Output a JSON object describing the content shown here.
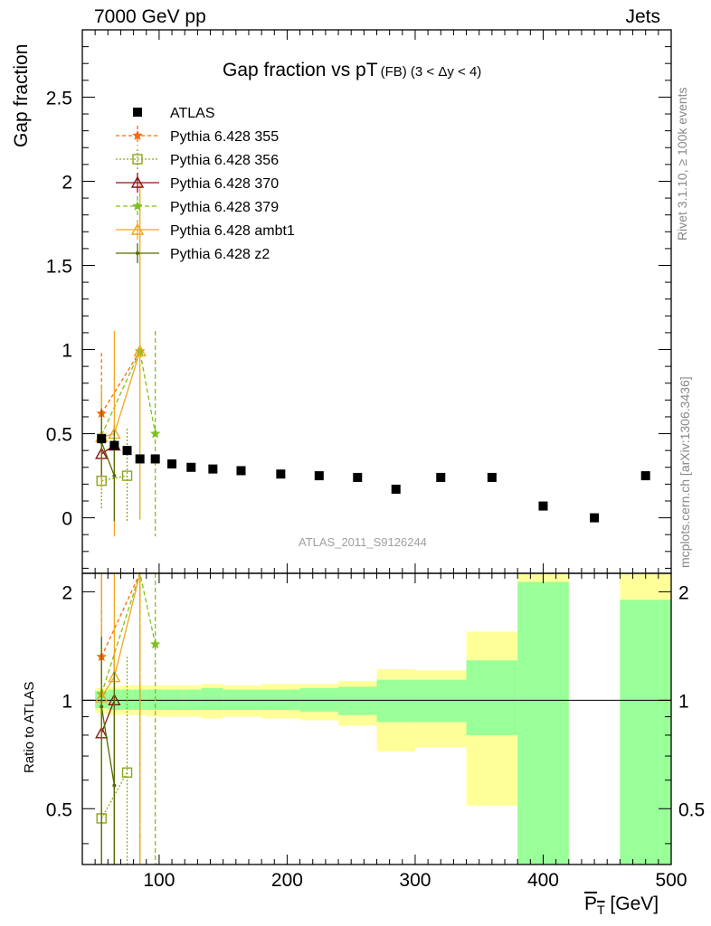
{
  "header": {
    "left_label": "7000 GeV pp",
    "right_label": "Jets"
  },
  "side_labels": {
    "rivet": "Rivet 3.1.10, ≥ 100k events",
    "mcplots": "mcplots.cern.ch [arXiv:1306.3436]"
  },
  "chart_data": [
    {
      "type": "scatter",
      "title": "Gap fraction vs pT",
      "title_suffix": "(FB) (3 < Δy < 4)",
      "ylabel": "Gap fraction",
      "ylim": [
        -0.33,
        2.9
      ],
      "yticks": [
        "0",
        "0.5",
        "1",
        "1.5",
        "2",
        "2.5"
      ],
      "watermark": "ATLAS_2011_S9126244",
      "legend_position": "top-left",
      "data_series": [
        {
          "name": "ATLAS",
          "color": "#000000",
          "marker": "square",
          "x": [
            55,
            65,
            75,
            85,
            97,
            110,
            125,
            142,
            164,
            195,
            225,
            255,
            285,
            320,
            360,
            400,
            440,
            480
          ],
          "y": [
            0.47,
            0.43,
            0.4,
            0.35,
            0.35,
            0.32,
            0.3,
            0.29,
            0.28,
            0.26,
            0.25,
            0.24,
            0.17,
            0.24,
            0.24,
            0.07,
            0.0,
            0.25
          ]
        }
      ],
      "mc_series": [
        {
          "name": "Pythia 6.428 355",
          "color": "#ff6a00",
          "dash": "4,3",
          "marker": "star",
          "x": [
            55,
            85
          ],
          "y": [
            0.62,
            0.99
          ],
          "err": [
            0.36,
            0
          ]
        },
        {
          "name": "Pythia 6.428 356",
          "color": "#8aa61a",
          "dash": "2,2",
          "marker": "open-square",
          "x": [
            55,
            75
          ],
          "y": [
            0.22,
            0.25
          ],
          "err": [
            0.17,
            0.28
          ]
        },
        {
          "name": "Pythia 6.428 370",
          "color": "#8b1414",
          "dash": "",
          "marker": "open-triangle",
          "x": [
            55,
            65
          ],
          "y": [
            0.38,
            0.43
          ],
          "err": [
            0.18,
            0.12
          ]
        },
        {
          "name": "Pythia 6.428 379",
          "color": "#80c020",
          "dash": "5,3",
          "marker": "star",
          "x": [
            55,
            85,
            97
          ],
          "y": [
            0.49,
            0.99,
            0.5
          ],
          "err": [
            0.3,
            0,
            0.61
          ]
        },
        {
          "name": "Pythia 6.428 ambt1",
          "color": "#f2a71a",
          "dash": "",
          "marker": "open-triangle",
          "x": [
            55,
            65,
            85
          ],
          "y": [
            0.48,
            0.5,
            0.99
          ],
          "err": [
            0.3,
            0.61,
            1.0
          ]
        },
        {
          "name": "Pythia 6.428 z2",
          "color": "#556b00",
          "dash": "",
          "marker": "dot",
          "x": [
            55,
            65
          ],
          "y": [
            0.45,
            0.25
          ],
          "err": [
            0.2,
            0.27
          ]
        }
      ]
    },
    {
      "type": "area",
      "ylabel": "Ratio to ATLAS",
      "xlabel": "P_T [GeV]",
      "xlim": [
        40,
        500
      ],
      "ylim": [
        0.35,
        2.25
      ],
      "xticks": [
        "100",
        "200",
        "300",
        "400",
        "500"
      ],
      "yticks": [
        "0.5",
        "1",
        "2"
      ],
      "reference_line": 1,
      "bands": [
        {
          "x0": 50,
          "x1": 60,
          "g": [
            0.95,
            1.06
          ],
          "y": [
            0.92,
            1.08
          ]
        },
        {
          "x0": 60,
          "x1": 70,
          "g": [
            0.94,
            1.07
          ],
          "y": [
            0.91,
            1.09
          ]
        },
        {
          "x0": 70,
          "x1": 80,
          "g": [
            0.94,
            1.07
          ],
          "y": [
            0.91,
            1.1
          ]
        },
        {
          "x0": 80,
          "x1": 90,
          "g": [
            0.94,
            1.07
          ],
          "y": [
            0.91,
            1.1
          ]
        },
        {
          "x0": 90,
          "x1": 103,
          "g": [
            0.94,
            1.07
          ],
          "y": [
            0.9,
            1.1
          ]
        },
        {
          "x0": 103,
          "x1": 118,
          "g": [
            0.94,
            1.07
          ],
          "y": [
            0.9,
            1.1
          ]
        },
        {
          "x0": 118,
          "x1": 133,
          "g": [
            0.94,
            1.07
          ],
          "y": [
            0.9,
            1.1
          ]
        },
        {
          "x0": 133,
          "x1": 150,
          "g": [
            0.94,
            1.08
          ],
          "y": [
            0.89,
            1.11
          ]
        },
        {
          "x0": 150,
          "x1": 180,
          "g": [
            0.94,
            1.07
          ],
          "y": [
            0.9,
            1.1
          ]
        },
        {
          "x0": 180,
          "x1": 210,
          "g": [
            0.94,
            1.07
          ],
          "y": [
            0.89,
            1.11
          ]
        },
        {
          "x0": 210,
          "x1": 240,
          "g": [
            0.93,
            1.08
          ],
          "y": [
            0.88,
            1.11
          ]
        },
        {
          "x0": 240,
          "x1": 270,
          "g": [
            0.91,
            1.09
          ],
          "y": [
            0.85,
            1.13
          ]
        },
        {
          "x0": 270,
          "x1": 300,
          "g": [
            0.87,
            1.14
          ],
          "y": [
            0.72,
            1.22
          ]
        },
        {
          "x0": 300,
          "x1": 340,
          "g": [
            0.87,
            1.14
          ],
          "y": [
            0.74,
            1.21
          ]
        },
        {
          "x0": 340,
          "x1": 380,
          "g": [
            0.8,
            1.29
          ],
          "y": [
            0.51,
            1.55
          ]
        },
        {
          "x0": 380,
          "x1": 420,
          "g": [
            0.35,
            2.13
          ],
          "y": [
            0.35,
            2.25
          ]
        },
        {
          "x0": 460,
          "x1": 500,
          "g": [
            0.35,
            1.9
          ],
          "y": [
            0.35,
            2.25
          ]
        }
      ],
      "mc_series": [
        {
          "name": "Pythia 6.428 355",
          "x": [
            55,
            85
          ],
          "y": [
            1.32,
            2.83
          ],
          "lo": [
            0.35,
            0.35
          ],
          "hi": [
            2.25,
            2.25
          ]
        },
        {
          "name": "Pythia 6.428 356",
          "x": [
            55,
            75
          ],
          "y": [
            0.47,
            0.63
          ],
          "lo": [
            0.35,
            0.35
          ],
          "hi": [
            2.25,
            1.32
          ]
        },
        {
          "name": "Pythia 6.428 370",
          "x": [
            55,
            65
          ],
          "y": [
            0.81,
            1.0
          ],
          "lo": [
            0.35,
            0.35
          ],
          "hi": [
            1.35,
            1.35
          ]
        },
        {
          "name": "Pythia 6.428 379",
          "x": [
            55,
            85,
            97
          ],
          "y": [
            1.04,
            2.83,
            1.43
          ],
          "lo": [
            0.35,
            0.35,
            0.35
          ],
          "hi": [
            2.25,
            2.25,
            2.25
          ]
        },
        {
          "name": "Pythia 6.428 ambt1",
          "x": [
            55,
            65,
            85
          ],
          "y": [
            1.02,
            1.16,
            2.83
          ],
          "lo": [
            0.35,
            0.35,
            0.35
          ],
          "hi": [
            2.25,
            2.25,
            2.25
          ]
        },
        {
          "name": "Pythia 6.428 z2",
          "x": [
            55,
            65
          ],
          "y": [
            0.96,
            0.58
          ],
          "lo": [
            0.35,
            0.35
          ],
          "hi": [
            1.5,
            1.2
          ]
        }
      ]
    }
  ]
}
